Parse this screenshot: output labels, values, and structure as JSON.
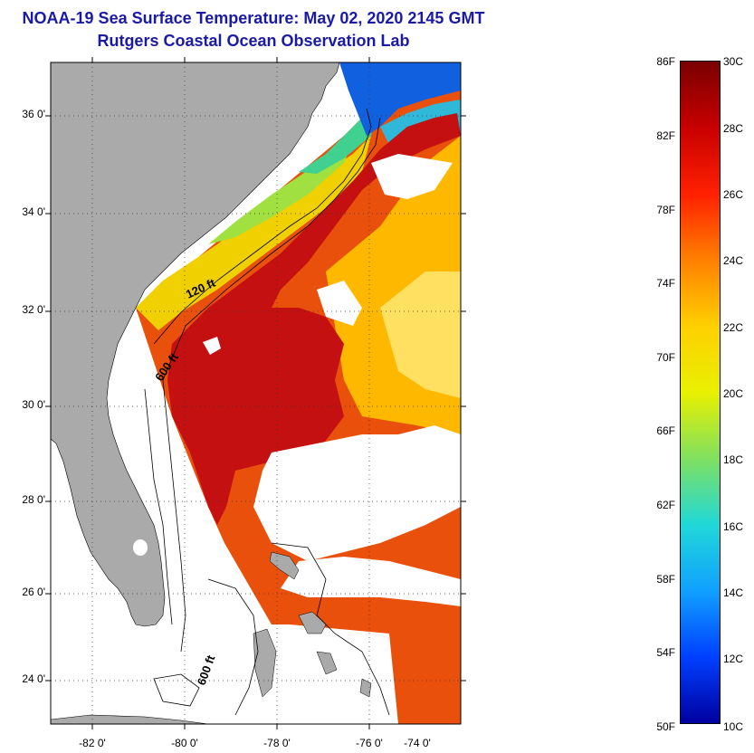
{
  "title": {
    "line1": "NOAA-19 Sea Surface Temperature:  May 02, 2020 2145 GMT",
    "line2": "Rutgers Coastal Ocean Observation Lab"
  },
  "map": {
    "lat_labels": [
      "36 0'",
      "34 0'",
      "32 0'",
      "30 0'",
      "28 0'",
      "26 0'",
      "24 0'"
    ],
    "lon_labels": [
      "-82 0'",
      "-80 0'",
      "-78 0'",
      "-76 0'",
      "-74 0'"
    ],
    "isobath_labels": [
      "120 ft",
      "600 ft",
      "600 ft"
    ],
    "colors": {
      "land": "#aaaaaa",
      "cloud": "#ffffff",
      "gulf_stream": "#c41010",
      "warm": "#e8400c",
      "mid": "#f8c000",
      "cool": "#20c8c8",
      "cold": "#1040e0"
    }
  },
  "colorbar": {
    "fahrenheit_labels": [
      "86F",
      "82F",
      "78F",
      "74F",
      "70F",
      "66F",
      "62F",
      "58F",
      "54F",
      "50F"
    ],
    "celsius_labels": [
      "30C",
      "28C",
      "26C",
      "24C",
      "22C",
      "20C",
      "18C",
      "16C",
      "14C",
      "12C",
      "10C"
    ],
    "gradient_stops": [
      "#7a0000",
      "#c80000",
      "#ff2000",
      "#ff8000",
      "#ffd000",
      "#e8f000",
      "#80e060",
      "#20d8d8",
      "#10a0ff",
      "#0040ff",
      "#0000a0"
    ]
  }
}
